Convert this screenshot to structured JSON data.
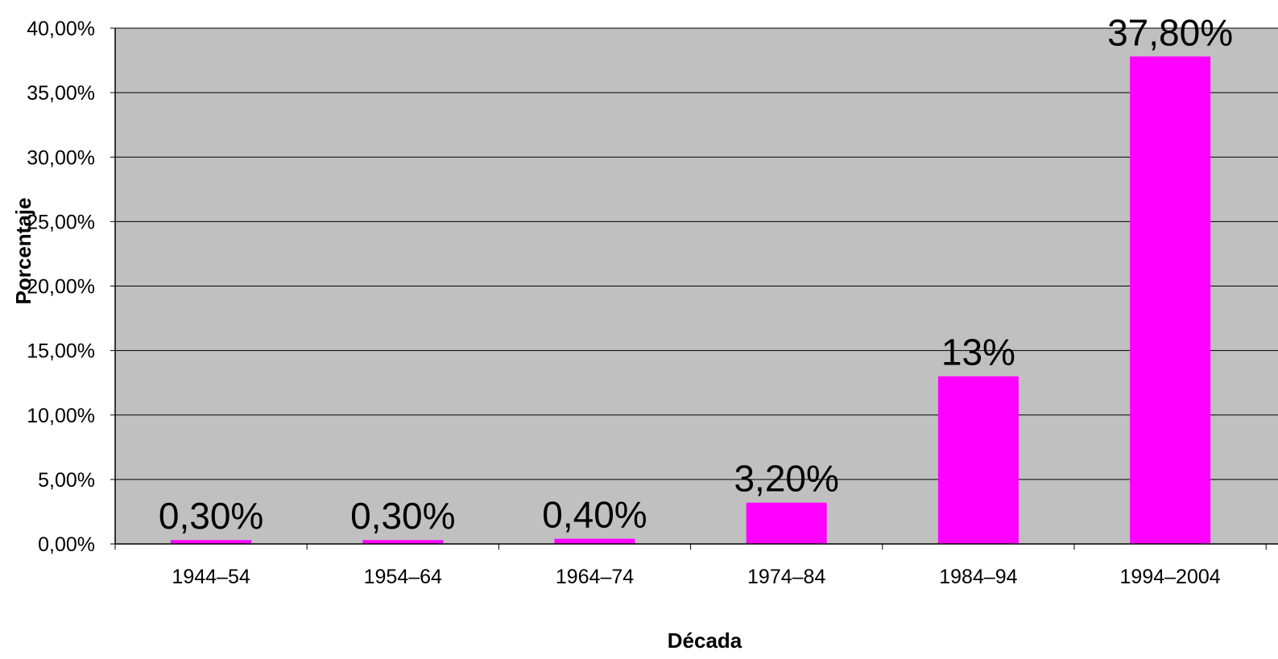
{
  "chart_data": {
    "type": "bar",
    "title": "",
    "xlabel": "Década",
    "ylabel": "Porcentaje",
    "categories": [
      "1944–54",
      "1954–64",
      "1964–74",
      "1974–84",
      "1984–94",
      "1994–2004"
    ],
    "values": [
      0.3,
      0.3,
      0.4,
      3.2,
      13,
      37.8
    ],
    "data_labels": [
      "0,30%",
      "0,30%",
      "0,40%",
      "3,20%",
      "13%",
      "37,80%"
    ],
    "ylim": [
      0,
      40
    ],
    "y_ticks": [
      0,
      5,
      10,
      15,
      20,
      25,
      30,
      35,
      40
    ],
    "y_tick_labels": [
      "0,00%",
      "5,00%",
      "10,00%",
      "15,00%",
      "20,00%",
      "25,00%",
      "30,00%",
      "35,00%",
      "40,00%"
    ],
    "grid": true,
    "legend": "none",
    "colors": {
      "bar": "#ff00ff",
      "plot_background": "#c0c0c0",
      "gridline": "#000000"
    }
  }
}
